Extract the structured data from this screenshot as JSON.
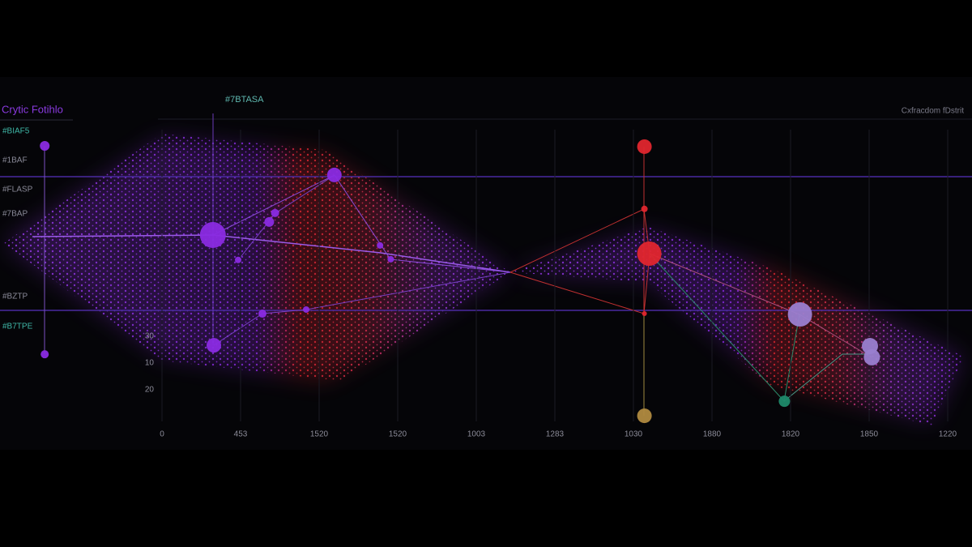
{
  "chart_data": {
    "type": "scatter",
    "title": "Crytic Fotihlo",
    "annotation": "#7BTASA",
    "subtitle": "Cxfracdom fDstrit",
    "side_labels": [
      "#BIAF5",
      "#1BAF",
      "#FLASP",
      "#7BAP",
      "#BZTP",
      "#B7TPE"
    ],
    "y_tick_labels": [
      "30",
      "10",
      "20"
    ],
    "x_tick_labels": [
      "0",
      "453",
      "1520",
      "1520",
      "1003",
      "1283",
      "1030",
      "1880",
      "1820",
      "1850",
      "1220"
    ],
    "xlim": [
      0,
      100
    ],
    "ylim": [
      0,
      100
    ],
    "series": [
      {
        "color": "#8a2be2",
        "x": [
          4.6,
          4.6,
          21.9,
          22,
          34.4,
          27.7,
          28.3,
          24.5,
          27,
          31.5,
          39.1,
          40.2
        ],
        "values": [
          82.6,
          26.7,
          58.7,
          29.1,
          74.8,
          62.2,
          64.6,
          52,
          37.6,
          38.7,
          55.9,
          52.2
        ],
        "sizes": [
          6,
          5,
          16,
          9,
          9,
          6,
          5,
          4,
          5,
          4,
          4,
          4
        ]
      },
      {
        "color": "#e0262e",
        "x": [
          66.3,
          66.3,
          66.8,
          66.3
        ],
        "values": [
          82.4,
          65.7,
          53.7,
          37.6
        ],
        "sizes": [
          9,
          4,
          15,
          3
        ]
      },
      {
        "color": "#b08a40",
        "x": [
          66.3
        ],
        "values": [
          10.2
        ],
        "sizes": [
          9
        ]
      },
      {
        "color": "#9a7fd0",
        "x": [
          82.3,
          89.5,
          89.7
        ],
        "values": [
          37.4,
          28.9,
          25.9
        ],
        "sizes": [
          15,
          10,
          10
        ]
      },
      {
        "color": "#1f8a6a",
        "x": [
          80.7
        ],
        "values": [
          14.1
        ],
        "sizes": [
          7
        ]
      }
    ]
  }
}
